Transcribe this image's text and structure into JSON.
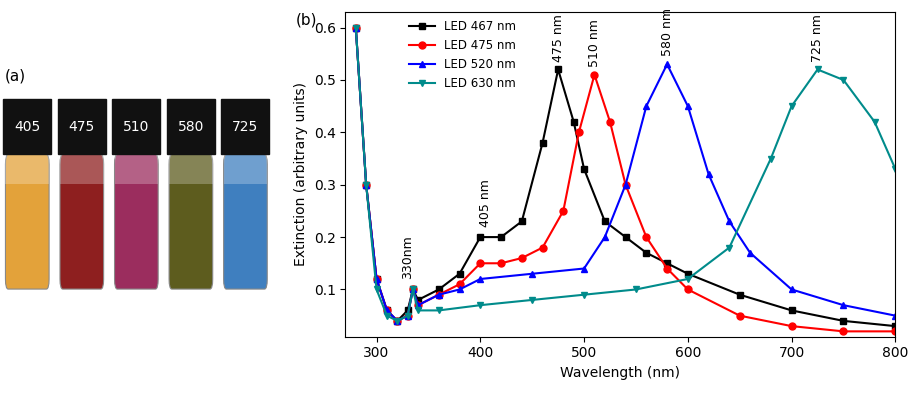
{
  "panel_a": {
    "label": "(a)",
    "vials": [
      {
        "label": "405",
        "color": "#e3a23a"
      },
      {
        "label": "475",
        "color": "#8e1f1f"
      },
      {
        "label": "510",
        "color": "#9b2d5e"
      },
      {
        "label": "580",
        "color": "#5d5c1e"
      },
      {
        "label": "725",
        "color": "#3f7fbf"
      }
    ]
  },
  "chart_data": {
    "type": "line",
    "panel_label": "(b)",
    "x_label": "Wavelength (nm)",
    "y_label": "Extinction (arbitrary units)",
    "xlim": [
      270,
      800
    ],
    "xticks": [
      300,
      400,
      500,
      600,
      700,
      800
    ],
    "ylim": [
      0.01,
      0.63
    ],
    "yticks": [
      0.1,
      0.2,
      0.3,
      0.4,
      0.5,
      0.6
    ],
    "legend": "upper left",
    "series": [
      {
        "name": "LED 467 nm",
        "color": "#000000",
        "marker": "square",
        "x": [
          280,
          290,
          300,
          310,
          320,
          330,
          335,
          340,
          360,
          380,
          400,
          420,
          440,
          460,
          475,
          490,
          500,
          520,
          540,
          560,
          580,
          600,
          650,
          700,
          750,
          800
        ],
        "values": [
          0.6,
          0.3,
          0.12,
          0.06,
          0.04,
          0.06,
          0.1,
          0.08,
          0.1,
          0.13,
          0.2,
          0.2,
          0.23,
          0.38,
          0.52,
          0.42,
          0.33,
          0.23,
          0.2,
          0.17,
          0.15,
          0.13,
          0.09,
          0.06,
          0.04,
          0.03
        ]
      },
      {
        "name": "LED 475 nm",
        "color": "#ff0000",
        "marker": "circle",
        "x": [
          280,
          290,
          300,
          310,
          320,
          330,
          335,
          340,
          360,
          380,
          400,
          420,
          440,
          460,
          480,
          495,
          510,
          525,
          540,
          560,
          580,
          600,
          650,
          700,
          750,
          800
        ],
        "values": [
          0.6,
          0.3,
          0.12,
          0.06,
          0.04,
          0.05,
          0.1,
          0.07,
          0.09,
          0.11,
          0.15,
          0.15,
          0.16,
          0.18,
          0.25,
          0.4,
          0.51,
          0.42,
          0.3,
          0.2,
          0.14,
          0.1,
          0.05,
          0.03,
          0.02,
          0.02
        ]
      },
      {
        "name": "LED 520 nm",
        "color": "#0000ff",
        "marker": "triangle_up",
        "x": [
          280,
          290,
          300,
          310,
          320,
          330,
          335,
          340,
          360,
          380,
          400,
          450,
          500,
          520,
          540,
          560,
          580,
          600,
          620,
          640,
          660,
          700,
          750,
          800
        ],
        "values": [
          0.6,
          0.3,
          0.12,
          0.06,
          0.04,
          0.05,
          0.1,
          0.07,
          0.09,
          0.1,
          0.12,
          0.13,
          0.14,
          0.2,
          0.3,
          0.45,
          0.53,
          0.45,
          0.32,
          0.23,
          0.17,
          0.1,
          0.07,
          0.05
        ]
      },
      {
        "name": "LED 630 nm",
        "color": "#008b8b",
        "marker": "triangle_down",
        "x": [
          280,
          290,
          300,
          310,
          320,
          330,
          335,
          340,
          360,
          400,
          450,
          500,
          550,
          600,
          640,
          680,
          700,
          725,
          750,
          780,
          800
        ],
        "values": [
          0.6,
          0.3,
          0.1,
          0.05,
          0.04,
          0.05,
          0.1,
          0.06,
          0.06,
          0.07,
          0.08,
          0.09,
          0.1,
          0.12,
          0.18,
          0.35,
          0.45,
          0.52,
          0.5,
          0.42,
          0.33
        ]
      }
    ],
    "annotations": [
      {
        "text": "330nm",
        "x": 330,
        "y": 0.12
      },
      {
        "text": "405 nm",
        "x": 405,
        "y": 0.22
      },
      {
        "text": "475 nm",
        "x": 475,
        "y": 0.535
      },
      {
        "text": "510 nm",
        "x": 510,
        "y": 0.525
      },
      {
        "text": "580 nm",
        "x": 580,
        "y": 0.545
      },
      {
        "text": "725 nm",
        "x": 725,
        "y": 0.535
      }
    ]
  }
}
